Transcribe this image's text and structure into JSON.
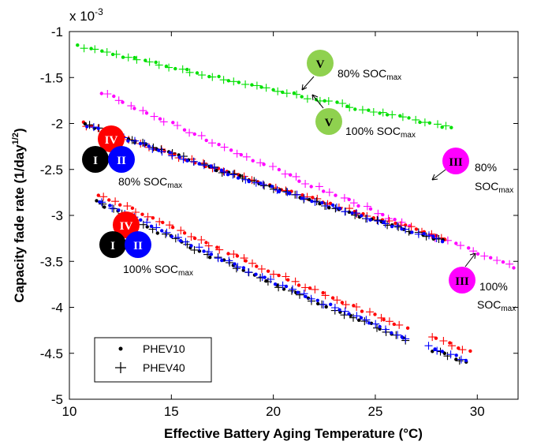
{
  "chart_data": {
    "type": "scatter",
    "xlabel": "Effective Battery Aging Temperature (°C)",
    "ylabel": "Capacity fade rate (1/day",
    "ylabel_sup": "1/2",
    "ylabel_close": ")",
    "y_multiplier": "x 10",
    "y_multiplier_exp": "-3",
    "xlim": [
      10,
      32
    ],
    "ylim": [
      -5,
      -1
    ],
    "xticks": [
      10,
      15,
      20,
      25,
      30
    ],
    "yticks": [
      -1,
      -1.5,
      -2,
      -2.5,
      -3,
      -3.5,
      -4,
      -4.5,
      -5
    ],
    "legend": [
      {
        "marker": "dot",
        "label": "PHEV10"
      },
      {
        "marker": "plus",
        "label": "PHEV40"
      }
    ],
    "legend_placement": "bottom-left",
    "series": [
      {
        "color": "#00e000",
        "x": [
          10.5,
          28.8
        ],
        "y": [
          -1.16,
          -2.05
        ],
        "curve": 0.05
      },
      {
        "color": "#ff00ff",
        "x": [
          11.5,
          31.8
        ],
        "y": [
          -1.66,
          -3.57
        ],
        "curve": 0.12,
        "gap": [
          26.8,
          27.6
        ]
      },
      {
        "color": "#ff0000",
        "x": [
          10.6,
          28.5
        ],
        "y": [
          -2.0,
          -3.25
        ],
        "curve": 0.12
      },
      {
        "color": "#000000",
        "x": [
          10.8,
          28.3
        ],
        "y": [
          -2.0,
          -3.28
        ],
        "curve": 0.12
      },
      {
        "color": "#0000ff",
        "x": [
          10.9,
          28.3
        ],
        "y": [
          -2.02,
          -3.27
        ],
        "curve": 0.12
      },
      {
        "color": "#ff0000",
        "x": [
          11.5,
          29.6
        ],
        "y": [
          -2.77,
          -4.48
        ],
        "curve": 0.2,
        "gap": [
          26.7,
          27.7
        ]
      },
      {
        "color": "#000000",
        "x": [
          11.3,
          29.4
        ],
        "y": [
          -2.85,
          -4.6
        ],
        "curve": 0.2,
        "gap": [
          26.6,
          27.6
        ]
      },
      {
        "color": "#0000ff",
        "x": [
          11.4,
          29.4
        ],
        "y": [
          -2.84,
          -4.58
        ],
        "curve": 0.2,
        "gap": [
          26.6,
          27.6
        ]
      }
    ],
    "annotations": [
      {
        "badge": "V",
        "color": "#8fd14f",
        "text": "80% SOC",
        "sub": "max"
      },
      {
        "badge": "V",
        "color": "#8fd14f",
        "text": "100% SOC",
        "sub": "max"
      },
      {
        "badge": "III",
        "color": "#ff00ff",
        "text": "80%",
        "text2": "SOC",
        "sub": "max"
      },
      {
        "badge": "III",
        "color": "#ff00ff",
        "text": "100%",
        "text2": "SOC",
        "sub": "max"
      },
      {
        "badge": "IV",
        "color": "#ff0000",
        "badge2": "I",
        "color2": "#000000",
        "badge3": "II",
        "color3": "#0000ff",
        "text": "80% SOC",
        "sub": "max"
      },
      {
        "badge": "IV",
        "color": "#ff0000",
        "badge2": "I",
        "color2": "#000000",
        "badge3": "II",
        "color3": "#0000ff",
        "text": "100% SOC",
        "sub": "max"
      }
    ]
  }
}
